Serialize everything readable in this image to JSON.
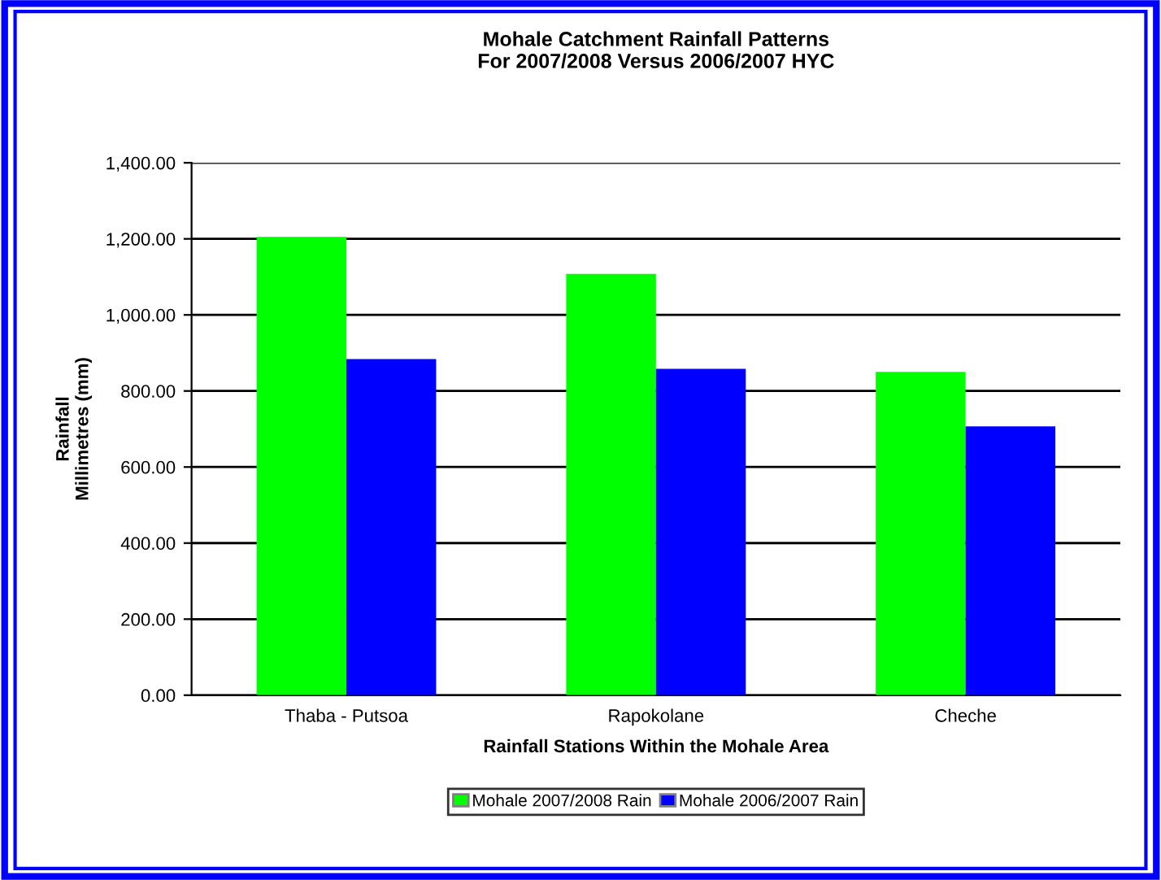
{
  "chart_data": {
    "type": "bar",
    "title": "Mohale Catchment Rainfall Patterns\nFor 2007/2008 Versus 2006/2007 HYC",
    "xlabel": "Rainfall Stations Within the Mohale Area",
    "ylabel": "Rainfall\nMillimetres (mm)",
    "categories": [
      "Thaba - Putsoa",
      "Rapokolane",
      "Cheche"
    ],
    "series": [
      {
        "name": "Mohale 2007/2008 Rain",
        "color": "#00ff00",
        "values": [
          1205,
          1108,
          850
        ]
      },
      {
        "name": "Mohale 2006/2007 Rain",
        "color": "#0000ff",
        "values": [
          884,
          858,
          707
        ]
      }
    ],
    "ylim": [
      0,
      1400
    ],
    "yticks": [
      {
        "value": 0,
        "label": "0.00"
      },
      {
        "value": 200,
        "label": "200.00"
      },
      {
        "value": 400,
        "label": "400.00"
      },
      {
        "value": 600,
        "label": "600.00"
      },
      {
        "value": 800,
        "label": "800.00"
      },
      {
        "value": 1000,
        "label": "1,000.00"
      },
      {
        "value": 1200,
        "label": "1,200.00"
      },
      {
        "value": 1400,
        "label": "1,400.00"
      }
    ],
    "grid": "y",
    "legend": "bottom"
  }
}
